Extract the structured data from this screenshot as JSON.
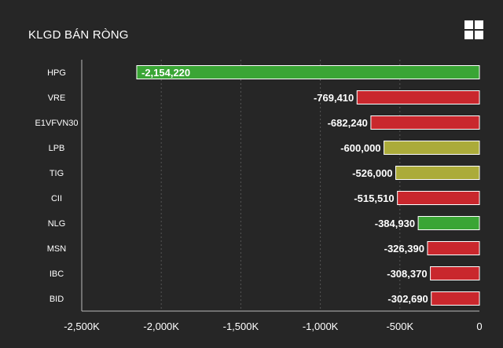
{
  "header": {
    "title": "KLGD BÁN RÒNG",
    "menu_icon": "grid-menu-icon"
  },
  "colors": {
    "background": "#262626",
    "axis": "#bbbbbb",
    "gridline": "#555555",
    "green": "#3aa535",
    "red": "#c9272d",
    "olive": "#abab3a"
  },
  "chart_data": {
    "type": "bar",
    "orientation": "horizontal",
    "title": "KLGD BÁN RÒNG",
    "categories": [
      "HPG",
      "VRE",
      "E1VFVN30",
      "LPB",
      "TIG",
      "CII",
      "NLG",
      "MSN",
      "IBC",
      "BID"
    ],
    "values": [
      -2154220,
      -769410,
      -682240,
      -600000,
      -526000,
      -515510,
      -384930,
      -326390,
      -308370,
      -302690
    ],
    "value_labels": [
      "-2,154,220",
      "-769,410",
      "-682,240",
      "-600,000",
      "-526,000",
      "-515,510",
      "-384,930",
      "-326,390",
      "-308,370",
      "-302,690"
    ],
    "bar_colors": [
      "green",
      "red",
      "red",
      "olive",
      "olive",
      "red",
      "green",
      "red",
      "red",
      "red"
    ],
    "xlim": [
      -2500000,
      0
    ],
    "x_ticks": [
      -2500000,
      -2000000,
      -1500000,
      -1000000,
      -500000,
      0
    ],
    "x_tick_labels": [
      "-2,500K",
      "-2,000K",
      "-1,500K",
      "-1,000K",
      "-500K",
      "0"
    ],
    "xlabel": "",
    "ylabel": "",
    "grid": "vertical-dashed",
    "legend": "none"
  }
}
